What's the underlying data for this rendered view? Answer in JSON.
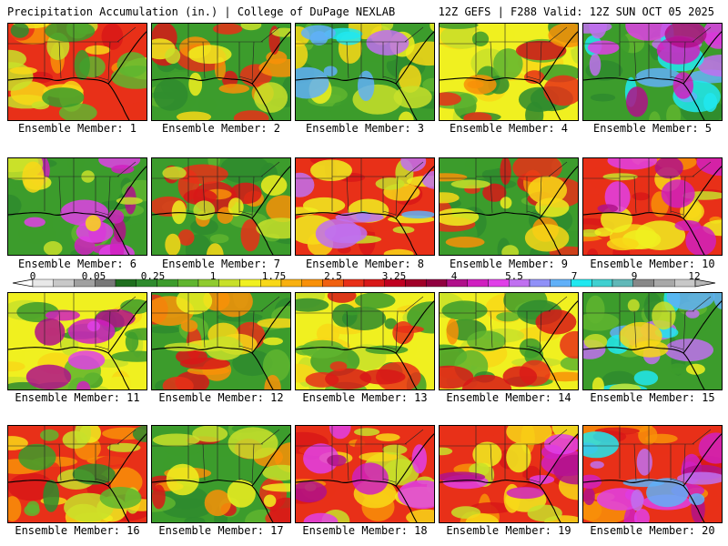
{
  "header": {
    "title": "Precipitation Accumulation (in.) | College of DuPage NEXLAB",
    "run_info": "12Z GEFS | F288 Valid: 12Z SUN OCT 05 2025"
  },
  "members": [
    "Ensemble Member: 1",
    "Ensemble Member: 2",
    "Ensemble Member: 3",
    "Ensemble Member: 4",
    "Ensemble Member: 5",
    "Ensemble Member: 6",
    "Ensemble Member: 7",
    "Ensemble Member: 8",
    "Ensemble Member: 9",
    "Ensemble Member: 10",
    "Ensemble Member: 11",
    "Ensemble Member: 12",
    "Ensemble Member: 13",
    "Ensemble Member: 14",
    "Ensemble Member: 15",
    "Ensemble Member: 16",
    "Ensemble Member: 17",
    "Ensemble Member: 18",
    "Ensemble Member: 19",
    "Ensemble Member: 20"
  ],
  "colorbar": {
    "labels": [
      "0",
      "0.05",
      "0.25",
      "1",
      "1.75",
      "2.5",
      "3.25",
      "4",
      "5.5",
      "7",
      "9",
      "12"
    ],
    "colors": [
      "#e8e8e8",
      "#c8c8c8",
      "#a0a0a0",
      "#787878",
      "#1e6e1e",
      "#2e8b2e",
      "#3c9c2c",
      "#5fb52f",
      "#8fcb2f",
      "#c8e02a",
      "#f0f020",
      "#f8d818",
      "#f8b010",
      "#f89008",
      "#f06010",
      "#e83018",
      "#d81818",
      "#c00020",
      "#a00028",
      "#900040",
      "#b0108a",
      "#d020c0",
      "#e040e8",
      "#c070f0",
      "#9090f8",
      "#60b0f8",
      "#20e8f0",
      "#40d0d0",
      "#60b8b8",
      "#888888",
      "#a8a8a8",
      "#c8c8c8"
    ]
  },
  "legend_colors": {
    "low": "#2e8b2e",
    "light": "#8fcb2f",
    "mod": "#f0f020",
    "heavy": "#f08010",
    "very_heavy": "#d81818",
    "extreme": "#b0108a",
    "max": "#20e8f0"
  }
}
